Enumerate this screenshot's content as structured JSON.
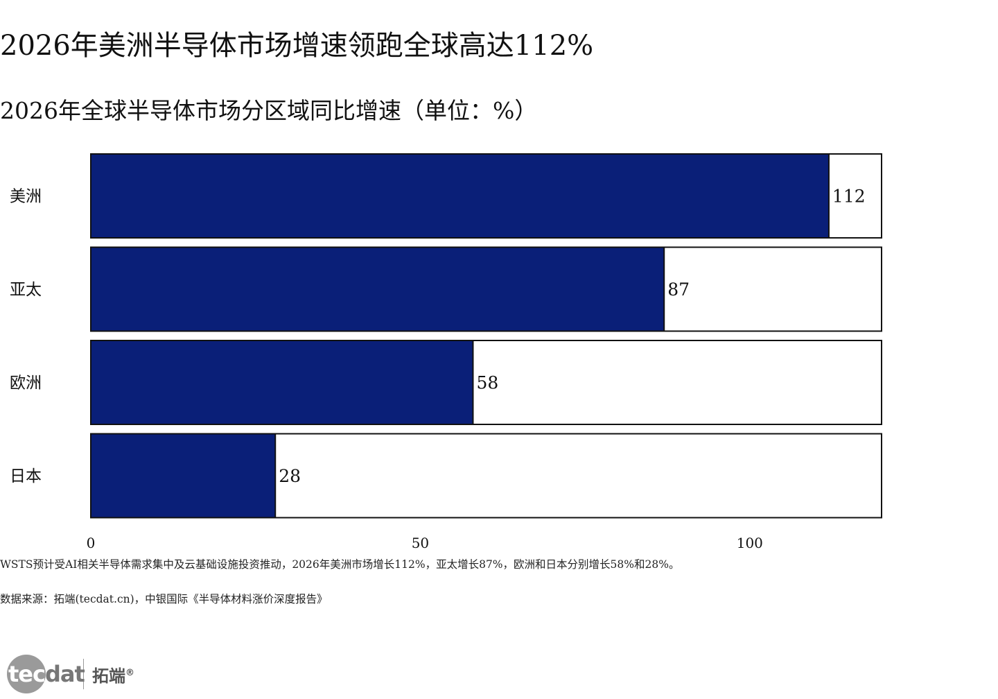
{
  "header": {
    "title": "2026年美洲半导体市场增速领跑全球高达112%",
    "subtitle": "2026年全球半导体市场分区域同比增速（单位：%）"
  },
  "chart_data": {
    "type": "bar",
    "orientation": "horizontal",
    "categories": [
      "美洲",
      "亚太",
      "欧洲",
      "日本"
    ],
    "values": [
      112,
      87,
      58,
      28
    ],
    "xlim": [
      0,
      120
    ],
    "xticks": [
      0,
      50,
      100
    ],
    "grid": false,
    "legend": "none",
    "bar_color": "#0a1f78",
    "track_color": "#ffffff"
  },
  "footer": {
    "note": "WSTS预计受AI相关半导体需求集中及云基础设施投资推动，2026年美洲市场增长112%，亚太增长87%，欧洲和日本分别增长58%和28%。",
    "source": "数据来源：拓端(tecdat.cn)，中银国际《半导体材料涨价深度报告》"
  },
  "logo": {
    "word_light": "tec",
    "word_dark": "dat",
    "cn": "拓端",
    "reg": "®"
  }
}
